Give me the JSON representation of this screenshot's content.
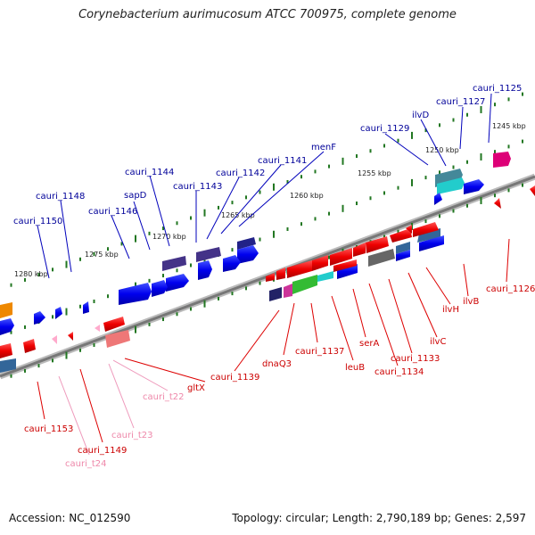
{
  "title": "Corynebacterium aurimucosum ATCC 700975, complete genome",
  "footer": {
    "accession": "Accession: NC_012590",
    "summary": "Topology: circular; Length: 2,790,189 bp; Genes: 2,597"
  },
  "colors": {
    "forward_gene": "#0000dd",
    "reverse_gene": "#ee0000",
    "forward_label": "#000099",
    "reverse_label": "#cc0000",
    "trna_label": "#ee88aa",
    "backbone": "#888888",
    "tick_dot": "#227722"
  },
  "kbp_ticks": [
    {
      "label": "1245 kbp"
    },
    {
      "label": "1250 kbp"
    },
    {
      "label": "1255 kbp"
    },
    {
      "label": "1260 kbp"
    },
    {
      "label": "1265 kbp"
    },
    {
      "label": "1270 kbp"
    },
    {
      "label": "1275 kbp"
    },
    {
      "label": "1280 kbp"
    }
  ],
  "forward_labels": [
    "cauri_1125",
    "cauri_1127",
    "ilvD",
    "cauri_1129",
    "menF",
    "cauri_1141",
    "cauri_1142",
    "cauri_1143",
    "cauri_1144",
    "sapD",
    "cauri_1146",
    "cauri_1148",
    "cauri_1150"
  ],
  "reverse_labels": [
    "cauri_1126",
    "ilvB",
    "ilvH",
    "ilvC",
    "cauri_1133",
    "cauri_1134",
    "serA",
    "leuB",
    "cauri_1137",
    "dnaQ3",
    "cauri_1139",
    "gltX",
    "cauri_t22",
    "cauri_t23",
    "cauri_1149",
    "cauri_t24",
    "cauri_1153"
  ]
}
